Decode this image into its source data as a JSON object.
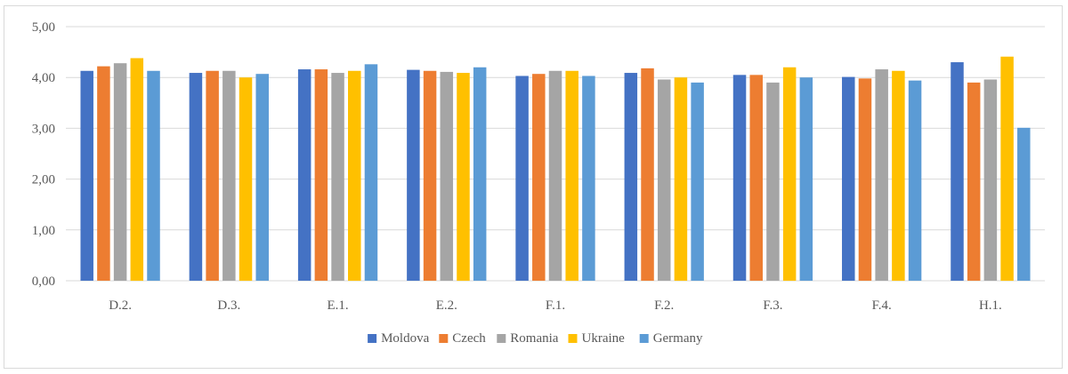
{
  "chart_data": {
    "type": "bar",
    "categories": [
      "D.2.",
      "D.3.",
      "E.1.",
      "E.2.",
      "F.1.",
      "F.2.",
      "F.3.",
      "F.4.",
      "H.1."
    ],
    "ylim": [
      0,
      5
    ],
    "yticks": [
      "0,00",
      "1,00",
      "2,00",
      "3,00",
      "4,00",
      "5,00"
    ],
    "ytick_values": [
      0,
      1,
      2,
      3,
      4,
      5
    ],
    "grid": true,
    "legend_position": "bottom",
    "series": [
      {
        "name": "Moldova",
        "color": "#4472c4",
        "values": [
          4.13,
          4.09,
          4.16,
          4.15,
          4.03,
          4.09,
          4.05,
          4.01,
          4.3
        ]
      },
      {
        "name": "Czech",
        "color": "#ed7d31",
        "values": [
          4.22,
          4.13,
          4.16,
          4.13,
          4.07,
          4.18,
          4.05,
          3.98,
          3.9
        ]
      },
      {
        "name": "Romania",
        "color": "#a5a5a5",
        "values": [
          4.28,
          4.13,
          4.09,
          4.11,
          4.13,
          3.96,
          3.9,
          4.16,
          3.96
        ]
      },
      {
        "name": "Ukraine",
        "color": "#ffc000",
        "values": [
          4.38,
          4.0,
          4.13,
          4.09,
          4.13,
          4.0,
          4.2,
          4.13,
          4.41
        ]
      },
      {
        "name": "Germany",
        "color": "#5b9bd5",
        "values": [
          4.13,
          4.07,
          4.26,
          4.2,
          4.03,
          3.9,
          4.0,
          3.94,
          3.01
        ]
      }
    ],
    "title": "",
    "xlabel": "",
    "ylabel": ""
  }
}
